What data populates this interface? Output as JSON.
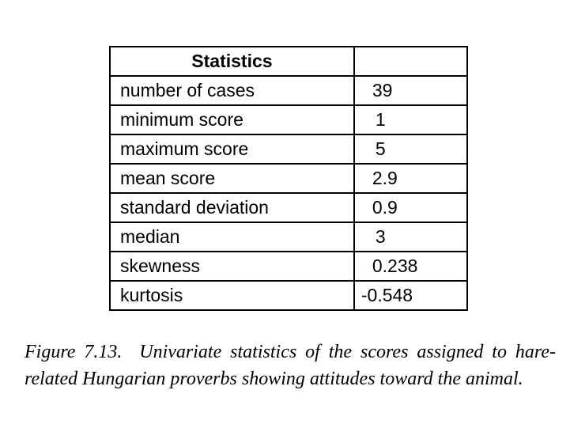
{
  "table": {
    "header": {
      "label": "Statistics",
      "value": ""
    },
    "rows": [
      {
        "label": "number of cases",
        "value": "39"
      },
      {
        "label": "minimum score",
        "value": "1"
      },
      {
        "label": "maximum score",
        "value": "5"
      },
      {
        "label": "mean score",
        "value": "2.9"
      },
      {
        "label": "standard deviation",
        "value": "0.9"
      },
      {
        "label": "median",
        "value": "3"
      },
      {
        "label": "skewness",
        "value": "0.238"
      },
      {
        "label": "kurtosis",
        "value": "-0.548"
      }
    ]
  },
  "caption": {
    "figure_label": "Figure 7.13.",
    "text": "Univariate statistics of the scores assigned to hare-related Hungarian proverbs showing attitudes toward the animal."
  }
}
